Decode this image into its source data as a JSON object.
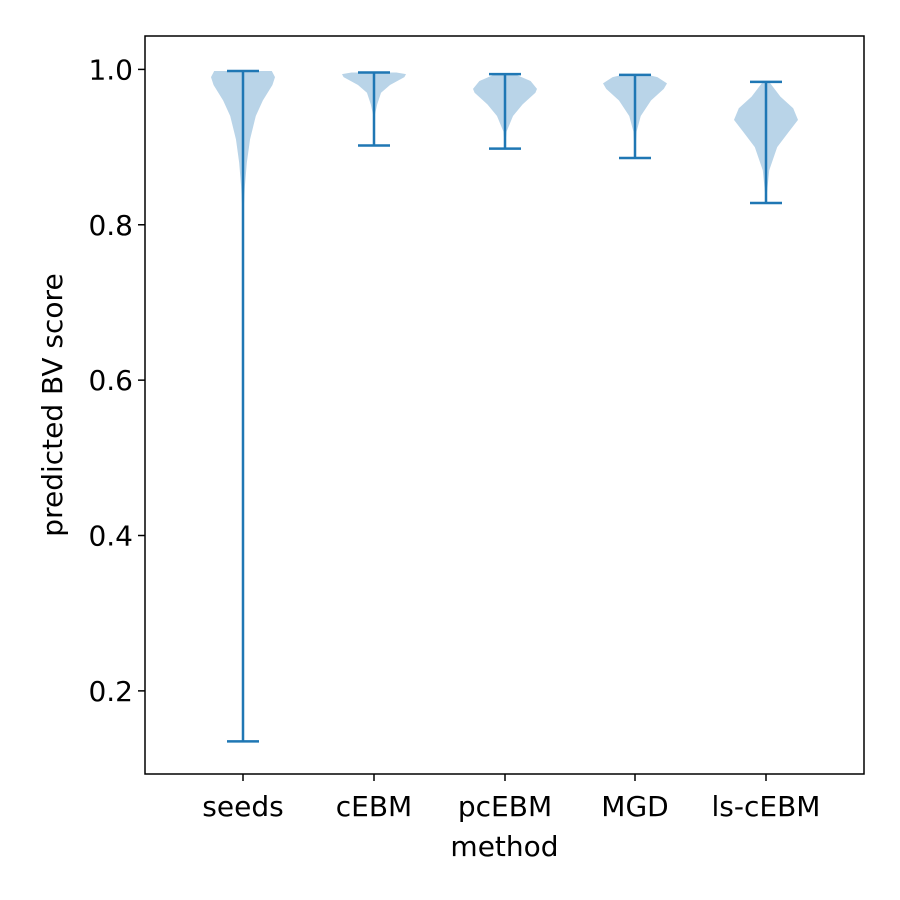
{
  "chart_data": {
    "type": "violin",
    "title": "",
    "xlabel": "method",
    "ylabel": "predicted BV score",
    "categories": [
      "seeds",
      "cEBM",
      "pcEBM",
      "MGD",
      "ls-cEBM"
    ],
    "ylim": [
      0.093,
      1.043
    ],
    "yticks": [
      0.2,
      0.4,
      0.6,
      0.8,
      1.0
    ],
    "ytick_labels": [
      "0.2",
      "0.4",
      "0.6",
      "0.8",
      "1.0"
    ],
    "grid": false,
    "legend": "none",
    "colors": {
      "body": "#b9d4e8",
      "lines": "#1f77b4",
      "axes": "#000000"
    },
    "violins": [
      {
        "category": "seeds",
        "min": 0.135,
        "max": 0.998,
        "density": [
          [
            0.135,
            0.0
          ],
          [
            0.8,
            0.0
          ],
          [
            0.85,
            0.06
          ],
          [
            0.88,
            0.12
          ],
          [
            0.91,
            0.22
          ],
          [
            0.94,
            0.4
          ],
          [
            0.96,
            0.62
          ],
          [
            0.98,
            0.92
          ],
          [
            0.99,
            1.0
          ],
          [
            0.998,
            0.9
          ]
        ]
      },
      {
        "category": "cEBM",
        "min": 0.902,
        "max": 0.996,
        "density": [
          [
            0.902,
            0.0
          ],
          [
            0.94,
            0.02
          ],
          [
            0.955,
            0.1
          ],
          [
            0.97,
            0.22
          ],
          [
            0.98,
            0.5
          ],
          [
            0.99,
            0.95
          ],
          [
            0.994,
            1.0
          ],
          [
            0.996,
            0.7
          ]
        ]
      },
      {
        "category": "pcEBM",
        "min": 0.898,
        "max": 0.994,
        "density": [
          [
            0.898,
            0.0
          ],
          [
            0.92,
            0.05
          ],
          [
            0.94,
            0.25
          ],
          [
            0.955,
            0.55
          ],
          [
            0.97,
            0.95
          ],
          [
            0.975,
            1.0
          ],
          [
            0.985,
            0.8
          ],
          [
            0.994,
            0.3
          ]
        ]
      },
      {
        "category": "MGD",
        "min": 0.886,
        "max": 0.993,
        "density": [
          [
            0.886,
            0.0
          ],
          [
            0.92,
            0.05
          ],
          [
            0.94,
            0.18
          ],
          [
            0.96,
            0.5
          ],
          [
            0.975,
            0.9
          ],
          [
            0.982,
            1.0
          ],
          [
            0.99,
            0.7
          ],
          [
            0.993,
            0.4
          ]
        ]
      },
      {
        "category": "ls-cEBM",
        "min": 0.828,
        "max": 0.984,
        "density": [
          [
            0.828,
            0.0
          ],
          [
            0.87,
            0.1
          ],
          [
            0.9,
            0.35
          ],
          [
            0.92,
            0.72
          ],
          [
            0.935,
            1.0
          ],
          [
            0.95,
            0.85
          ],
          [
            0.965,
            0.45
          ],
          [
            0.984,
            0.1
          ]
        ]
      }
    ]
  }
}
